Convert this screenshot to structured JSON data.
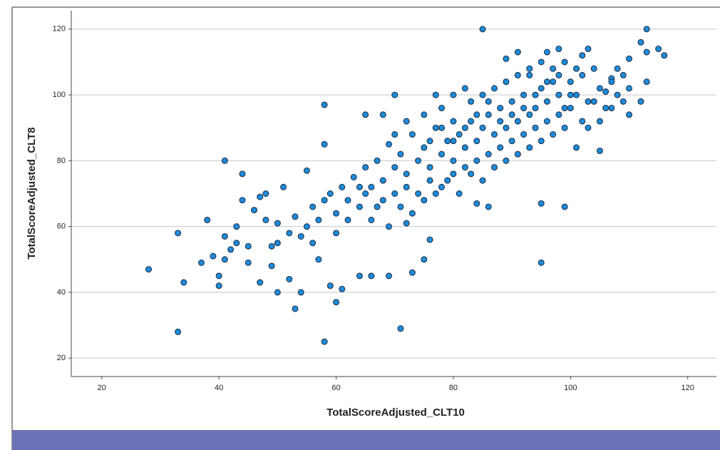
{
  "chart_data": {
    "type": "scatter",
    "x_label": "TotalScoreAdjusted_CLT10",
    "y_label": "TotalScoreAdjusted_CLT8",
    "xlim": [
      14.8,
      124.9
    ],
    "ylim": [
      14.4,
      125.6
    ],
    "xticks": [
      20,
      40,
      60,
      80,
      100,
      120
    ],
    "yticks": [
      20,
      40,
      60,
      80,
      100,
      120
    ],
    "grid": true,
    "color": "#1f8bd8",
    "x": [
      28,
      33,
      33,
      34,
      37,
      38,
      39,
      40,
      40,
      41,
      41,
      41,
      42,
      43,
      43,
      44,
      44,
      45,
      45,
      46,
      47,
      47,
      48,
      48,
      49,
      49,
      50,
      50,
      51,
      52,
      53,
      54,
      55,
      56,
      57,
      58,
      58,
      58,
      59,
      60,
      61,
      64,
      65,
      66,
      68,
      69,
      70,
      71,
      72,
      73,
      75,
      76,
      77,
      80,
      82,
      84,
      85,
      86,
      89,
      91,
      93,
      95,
      95,
      96,
      98,
      99,
      102,
      105,
      106,
      110,
      112,
      113,
      113,
      115,
      116,
      112,
      113,
      107,
      108,
      110,
      103,
      50,
      52,
      53,
      54,
      55,
      56,
      57,
      58,
      59,
      60,
      61,
      62,
      63,
      64,
      65,
      66,
      67,
      68,
      69,
      70,
      71,
      72,
      73,
      74,
      75,
      76,
      77,
      78,
      79,
      80,
      81,
      82,
      83,
      84,
      85,
      86,
      87,
      88,
      89,
      90,
      91,
      92,
      93,
      94,
      95,
      96,
      97,
      98,
      99,
      100,
      101,
      102,
      103,
      104,
      105,
      106,
      107,
      108,
      109,
      110,
      60,
      62,
      64,
      66,
      68,
      70,
      72,
      74,
      76,
      78,
      80,
      82,
      84,
      86,
      88,
      90,
      92,
      94,
      96,
      98,
      100,
      102,
      104,
      70,
      72,
      75,
      78,
      80,
      83,
      85,
      87,
      89,
      91,
      93,
      95,
      97,
      99,
      101,
      65,
      67,
      69,
      71,
      73,
      75,
      77,
      79,
      81,
      83,
      85,
      87,
      89,
      91,
      93,
      95,
      97,
      99,
      101,
      103,
      105,
      107,
      109,
      76,
      78,
      80,
      82,
      84,
      86,
      88,
      90,
      92,
      94,
      96,
      98,
      100
    ],
    "values": [
      47,
      58,
      28,
      43,
      49,
      62,
      51,
      45,
      42,
      80,
      57,
      50,
      53,
      55,
      60,
      76,
      68,
      54,
      49,
      65,
      43,
      69,
      70,
      62,
      54,
      48,
      40,
      61,
      72,
      44,
      35,
      40,
      77,
      55,
      50,
      25,
      97,
      85,
      42,
      37,
      41,
      45,
      94,
      45,
      94,
      45,
      100,
      29,
      61,
      46,
      50,
      56,
      100,
      100,
      102,
      67,
      120,
      66,
      111,
      113,
      106,
      49,
      67,
      113,
      114,
      66,
      112,
      83,
      101,
      94,
      98,
      120,
      113,
      114,
      112,
      116,
      104,
      105,
      108,
      111,
      114,
      55,
      58,
      63,
      57,
      60,
      66,
      62,
      68,
      70,
      64,
      72,
      68,
      75,
      66,
      78,
      72,
      80,
      74,
      85,
      78,
      82,
      76,
      88,
      80,
      84,
      78,
      90,
      82,
      86,
      80,
      88,
      84,
      92,
      86,
      90,
      94,
      88,
      96,
      90,
      98,
      92,
      100,
      94,
      96,
      102,
      98,
      104,
      100,
      96,
      104,
      100,
      106,
      98,
      108,
      102,
      96,
      104,
      100,
      106,
      102,
      58,
      62,
      72,
      62,
      68,
      70,
      72,
      70,
      74,
      72,
      76,
      78,
      80,
      82,
      84,
      86,
      88,
      90,
      92,
      94,
      96,
      92,
      98,
      88,
      92,
      94,
      96,
      92,
      98,
      100,
      102,
      104,
      106,
      108,
      110,
      108,
      110,
      108,
      70,
      66,
      60,
      66,
      64,
      68,
      70,
      74,
      70,
      76,
      74,
      78,
      80,
      82,
      84,
      86,
      88,
      90,
      84,
      90,
      92,
      96,
      98,
      86,
      90,
      86,
      90,
      94,
      98,
      92,
      94,
      96,
      100,
      104,
      106,
      100
    ]
  }
}
